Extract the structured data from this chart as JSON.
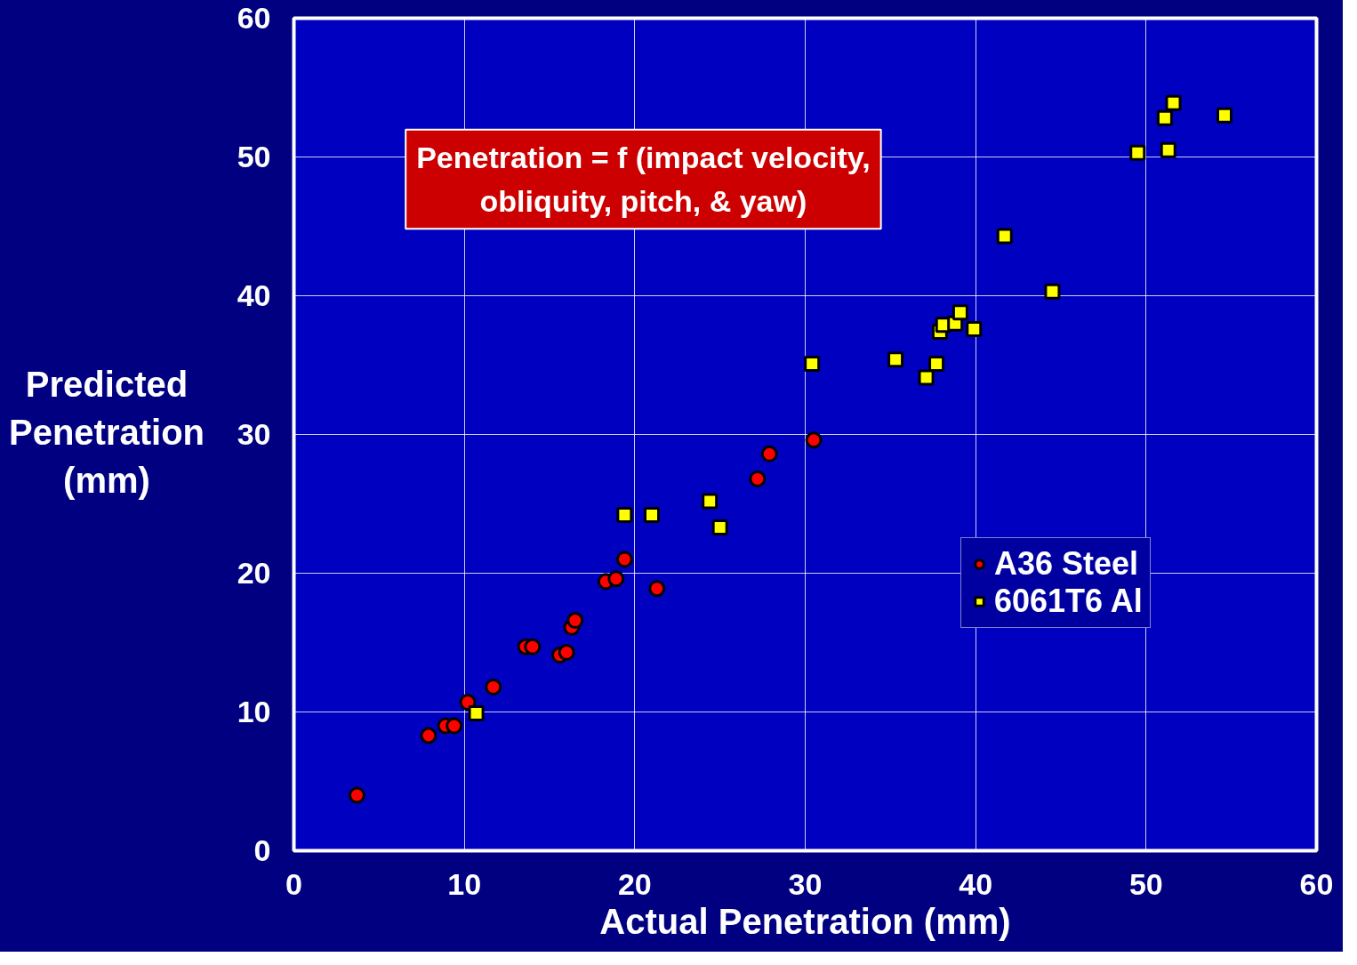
{
  "chart_data": {
    "type": "scatter",
    "xlabel": "Actual Penetration (mm)",
    "ylabel": "Predicted Penetration (mm)",
    "xlim": [
      0,
      60
    ],
    "ylim": [
      0,
      60
    ],
    "xticks": [
      0,
      10,
      20,
      30,
      40,
      50,
      60
    ],
    "yticks": [
      0,
      10,
      20,
      30,
      40,
      50,
      60
    ],
    "grid": true,
    "legend": "right",
    "annotations": [
      "Penetration = f (impact velocity, obliquity, pitch, & yaw)"
    ],
    "series": [
      {
        "name": "A36 Steel",
        "color": "#ff0000",
        "marker": "circle",
        "x": [
          3.7,
          7.9,
          8.9,
          9.4,
          10.2,
          10.7,
          11.7,
          13.6,
          14.0,
          15.6,
          16.0,
          16.3,
          16.5,
          18.3,
          18.9,
          19.4,
          21.3,
          27.2,
          27.9,
          30.5
        ],
        "values": [
          4.0,
          8.3,
          9.0,
          9.0,
          10.7,
          null,
          11.8,
          14.7,
          14.7,
          14.1,
          14.3,
          16.1,
          16.6,
          19.4,
          19.6,
          21.0,
          18.9,
          26.8,
          28.6,
          29.6
        ]
      },
      {
        "name": "6061T6 Al",
        "color": "#ffff00",
        "marker": "square",
        "x": [
          10.7,
          19.4,
          21.0,
          24.4,
          24.95,
          25.0,
          30.4,
          35.3,
          37.1,
          37.7,
          37.8,
          37.9,
          38.1,
          38.8,
          39.1,
          39.9,
          41.7,
          44.5,
          49.5,
          51.1,
          51.3,
          51.6,
          54.6
        ],
        "values": [
          9.9,
          24.2,
          24.2,
          25.2,
          null,
          23.3,
          35.1,
          35.4,
          34.1,
          35.1,
          null,
          37.4,
          37.9,
          38.0,
          38.8,
          37.6,
          44.3,
          40.3,
          50.3,
          52.8,
          50.5,
          53.9,
          53.0
        ]
      }
    ]
  }
}
